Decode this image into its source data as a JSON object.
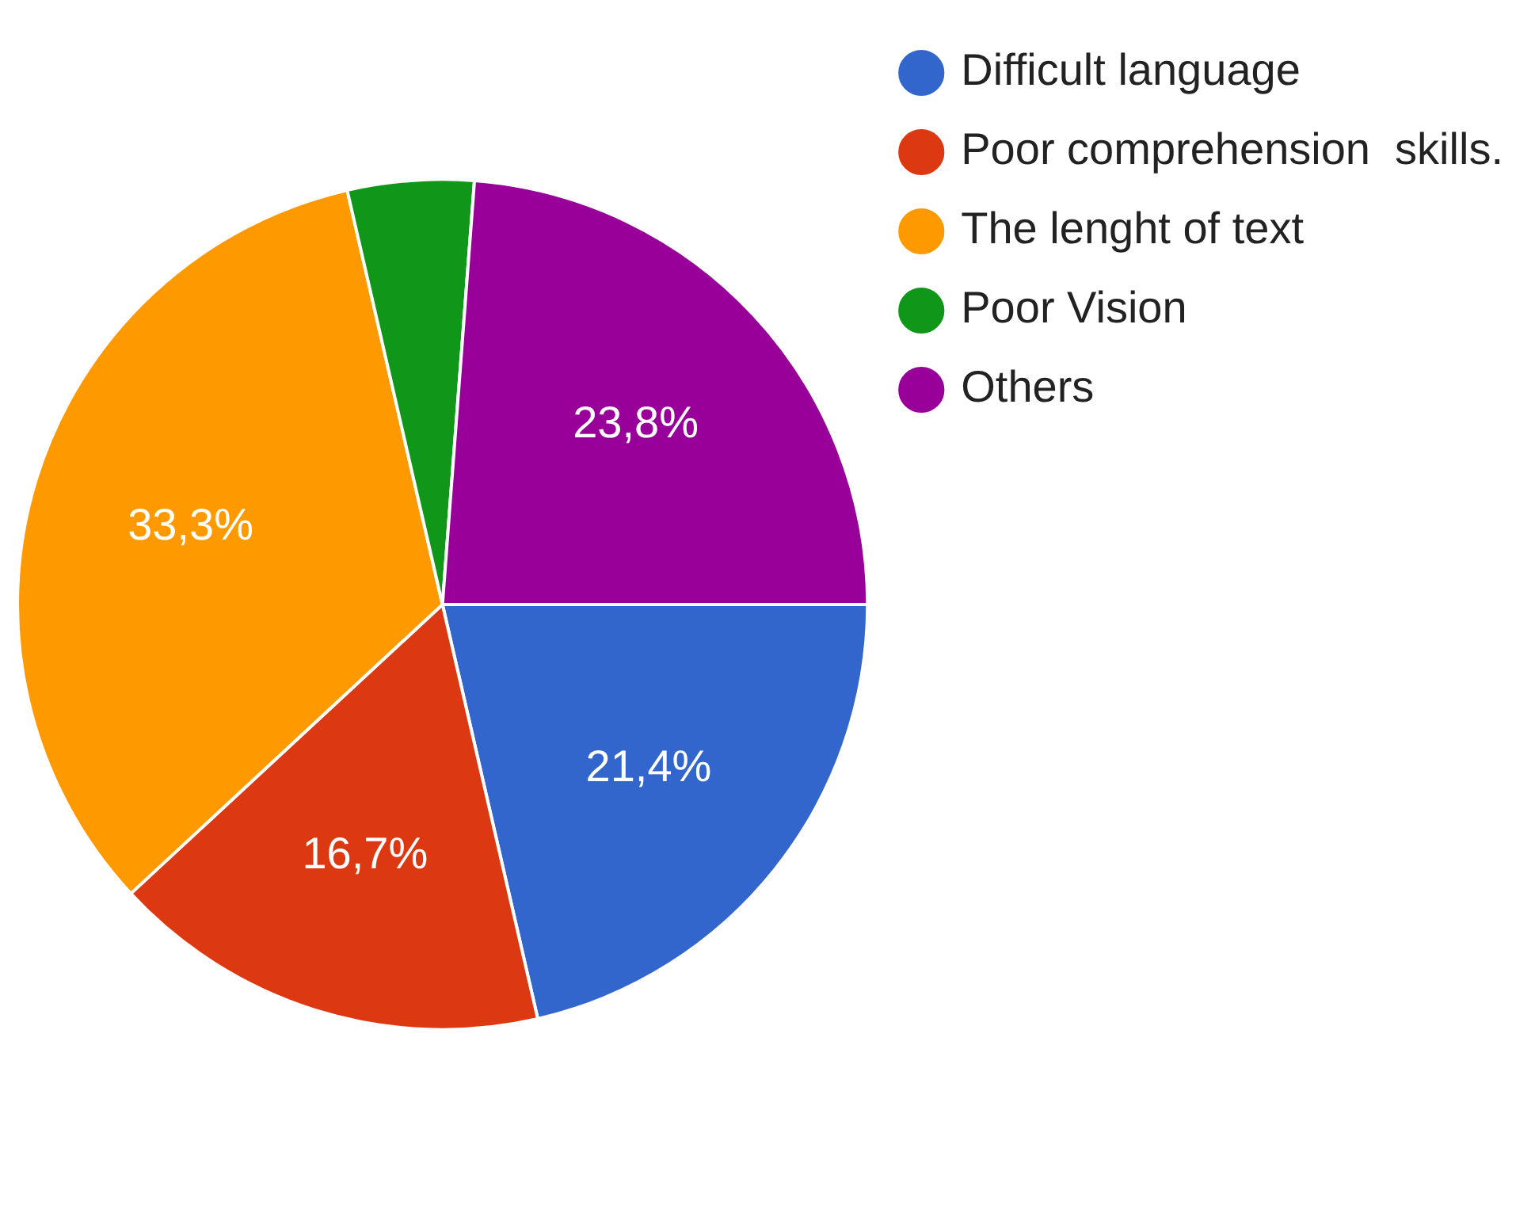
{
  "chart_data": {
    "type": "pie",
    "categories": [
      "Difficult language",
      "Poor comprehension  skills.",
      "The lenght of text",
      "Poor Vision",
      "Others"
    ],
    "values": [
      21.4,
      16.7,
      33.3,
      4.8,
      23.8
    ],
    "colors": [
      "#3366cc",
      "#dc3912",
      "#ff9900",
      "#109618",
      "#990099"
    ],
    "value_labels": [
      "21,4%",
      "16,7%",
      "33,3%",
      null,
      "23,8%"
    ],
    "legend": "top right"
  }
}
